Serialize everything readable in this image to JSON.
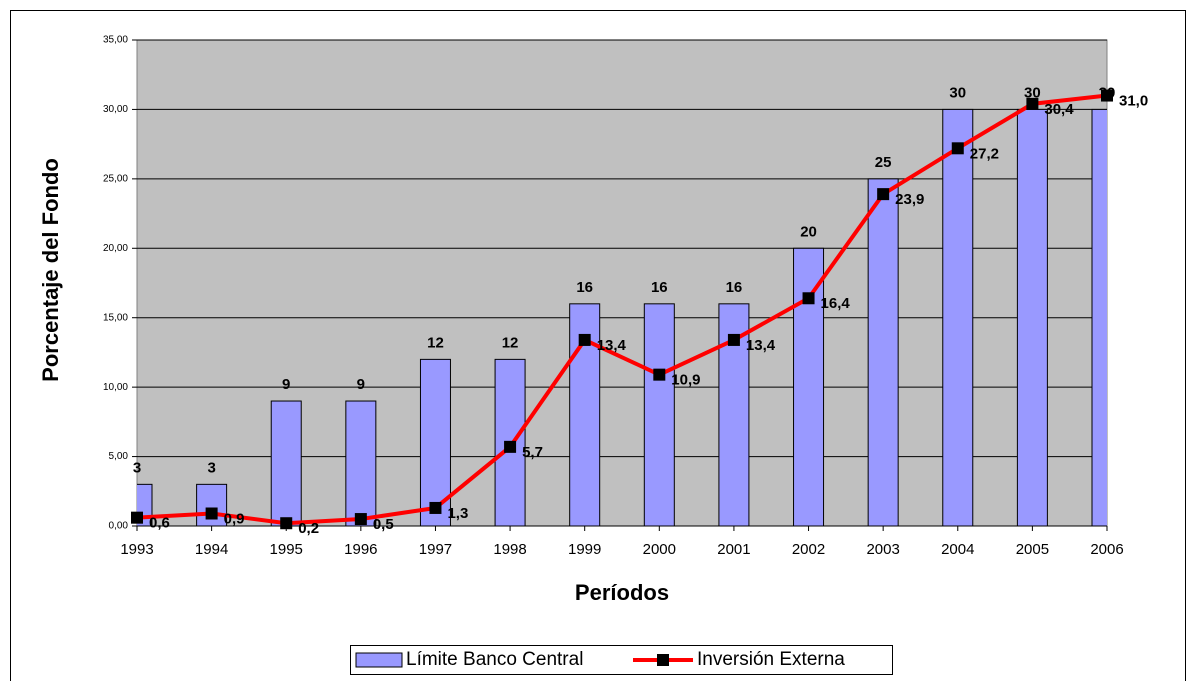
{
  "chart_data": {
    "type": "bar_line",
    "x_label": "Períodos",
    "y_label": "Porcentaje del Fondo",
    "categories": [
      "1993",
      "1994",
      "1995",
      "1996",
      "1997",
      "1998",
      "1999",
      "2000",
      "2001",
      "2002",
      "2003",
      "2004",
      "2005",
      "2006"
    ],
    "series": [
      {
        "name": "Límite Banco Central",
        "type": "bar",
        "color": "#9999ff",
        "values": [
          3,
          3,
          9,
          9,
          12,
          12,
          16,
          16,
          16,
          20,
          25,
          30,
          30,
          30
        ]
      },
      {
        "name": "Inversión Externa",
        "type": "line",
        "color": "#ff0000",
        "marker_color": "#000000",
        "values": [
          0.6,
          0.9,
          0.2,
          0.5,
          1.3,
          5.7,
          13.4,
          10.9,
          13.4,
          16.4,
          23.9,
          27.2,
          30.4,
          31.0
        ],
        "value_labels": [
          "0,6",
          "0,9",
          "0,2",
          "0,5",
          "1,3",
          "5,7",
          "13,4",
          "10,9",
          "13,4",
          "16,4",
          "23,9",
          "27,2",
          "30,4",
          "31,0"
        ]
      }
    ],
    "ylim": [
      0,
      35
    ],
    "yticks": [
      {
        "value": 0,
        "label": "0,00"
      },
      {
        "value": 5,
        "label": "5,00"
      },
      {
        "value": 10,
        "label": "10,00"
      },
      {
        "value": 15,
        "label": "15,00"
      },
      {
        "value": 20,
        "label": "20,00"
      },
      {
        "value": 25,
        "label": "25,00"
      },
      {
        "value": 30,
        "label": "30,00"
      },
      {
        "value": 35,
        "label": "35,00"
      }
    ],
    "grid": true,
    "plot_background": "#c0c0c0",
    "legend": "bottom"
  }
}
